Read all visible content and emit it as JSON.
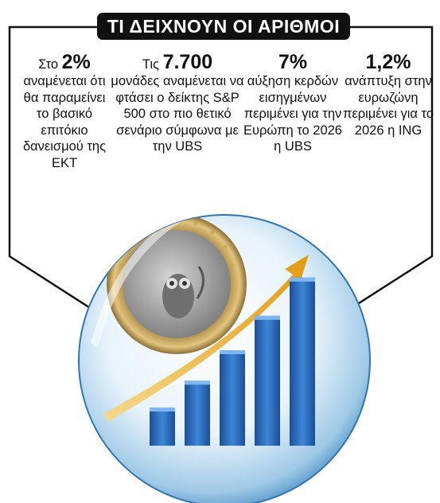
{
  "header": {
    "title": "ΤΙ ΔΕΙΧΝΟΥΝ ΟΙ ΑΡΙΘΜΟΙ"
  },
  "facts": [
    {
      "lead": "Στο",
      "value": "2%",
      "text": "αναμένεται ότι θα παραμείνει το βασικό επιτόκιο δανεισμού της ΕΚΤ"
    },
    {
      "lead": "Τις",
      "value": "7.700",
      "text": "μονάδες αναμένεται να φτάσει ο δείκτης S&P 500 στο πιο θετικό σενάριο σύμφωνα με την UBS"
    },
    {
      "lead": "",
      "value": "7%",
      "text": "αύξηση κερδών εισηγμένων περιμένει για την Ευρώπη το 2026 η UBS"
    },
    {
      "lead": "",
      "value": "1,2%",
      "text": "ανάπτυξη στην ευρωζώνη περιμένει για το 2026 η ING"
    }
  ],
  "illustration": {
    "bar_levels": [
      0.2,
      0.34,
      0.5,
      0.68,
      0.88
    ],
    "colors": {
      "bars": "#2f6fc4",
      "arrow": "#e6a21a",
      "coin_gold": "#d9b66a",
      "coin_silver": "#a9a9a9",
      "frame": "#111111"
    }
  }
}
